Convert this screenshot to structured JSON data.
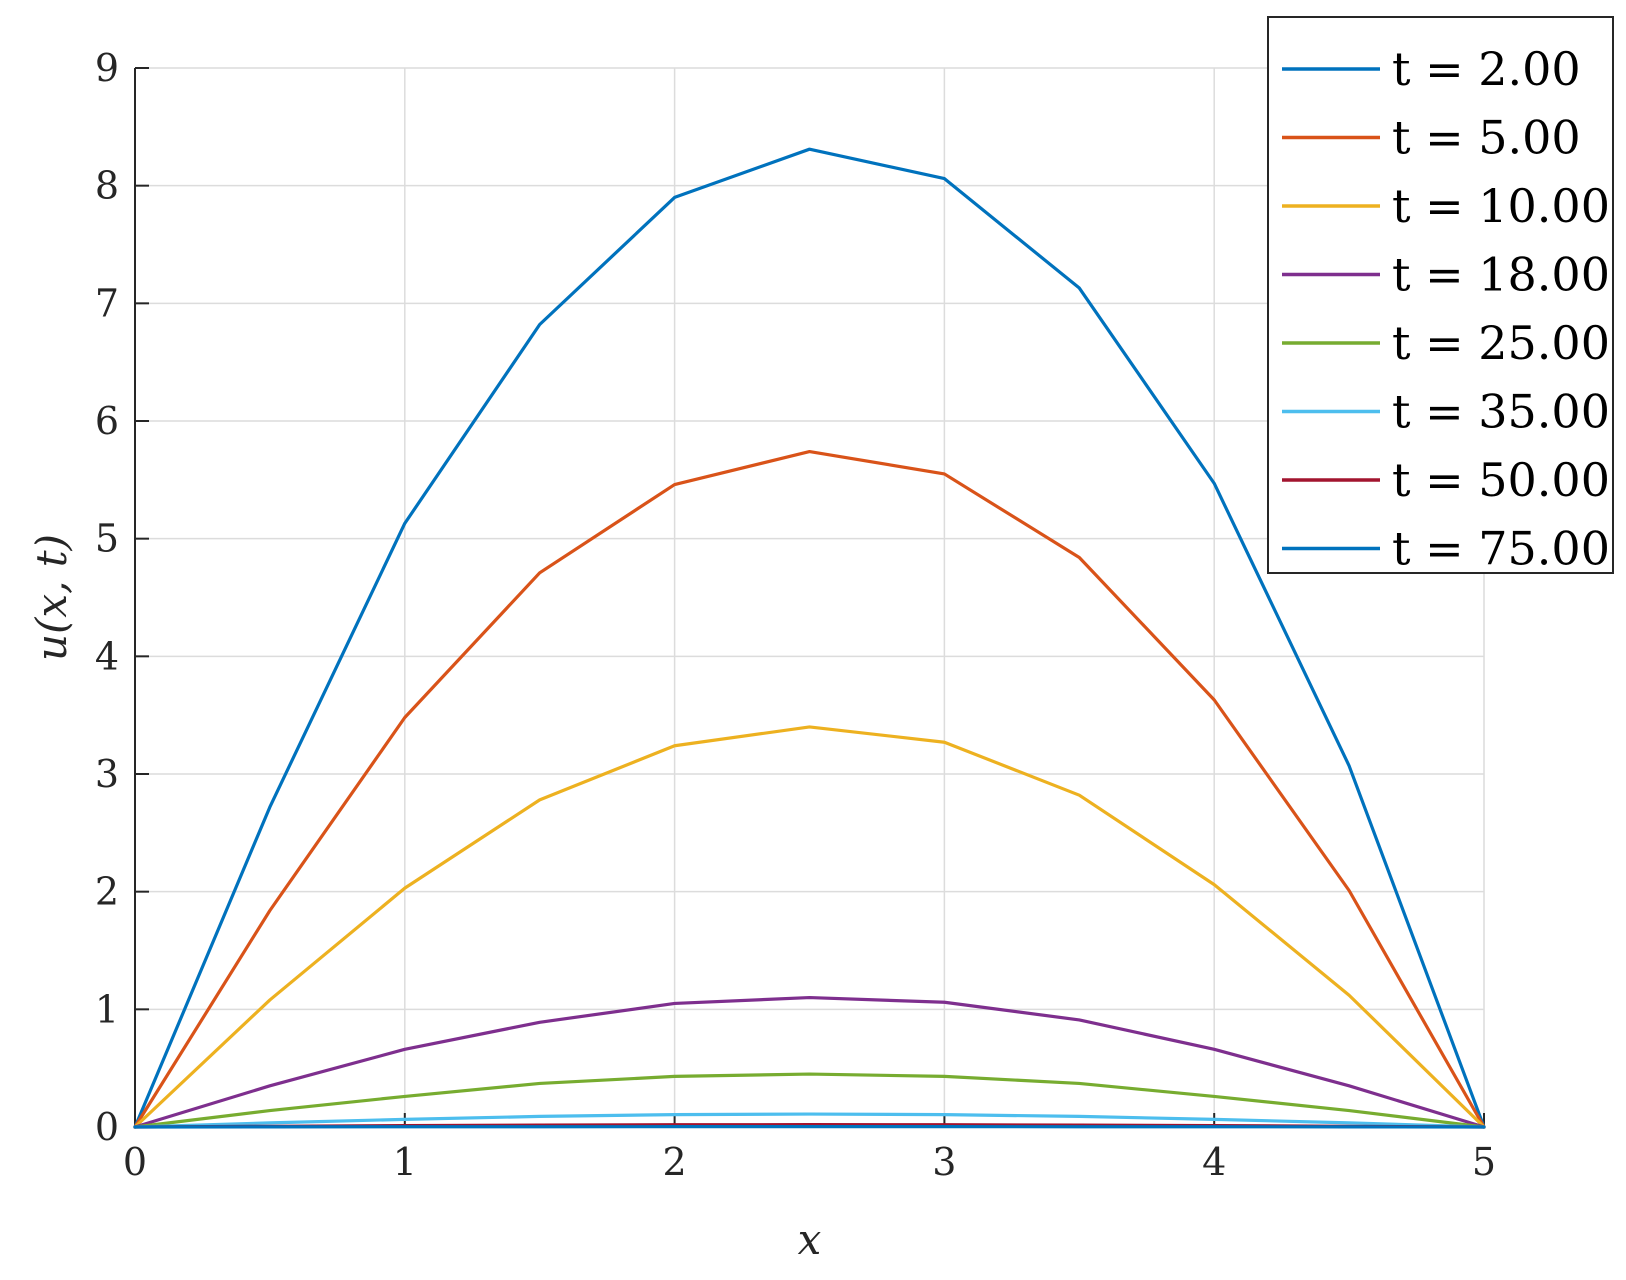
{
  "chart_data": {
    "type": "line",
    "xlabel": "x",
    "ylabel": "u(x, t)",
    "xlim": [
      0,
      5
    ],
    "ylim": [
      0,
      9
    ],
    "xticks": [
      "0",
      "1",
      "2",
      "3",
      "4",
      "5"
    ],
    "yticks": [
      "0",
      "1",
      "2",
      "3",
      "4",
      "5",
      "6",
      "7",
      "8",
      "9"
    ],
    "grid": true,
    "legend_position": "top-right",
    "x": [
      0,
      0.5,
      1,
      1.5,
      2,
      2.5,
      3,
      3.5,
      4,
      4.5,
      5
    ],
    "series": [
      {
        "name": "t = 2.00",
        "color": "#0072BD",
        "values": [
          0,
          2.72,
          5.13,
          6.82,
          7.9,
          8.31,
          8.06,
          7.13,
          5.47,
          3.07,
          0
        ]
      },
      {
        "name": "t = 5.00",
        "color": "#D95319",
        "values": [
          0,
          1.84,
          3.48,
          4.71,
          5.46,
          5.74,
          5.55,
          4.84,
          3.63,
          2.01,
          0
        ]
      },
      {
        "name": "t = 10.00",
        "color": "#EDB120",
        "values": [
          0,
          1.08,
          2.03,
          2.78,
          3.24,
          3.4,
          3.27,
          2.82,
          2.06,
          1.12,
          0
        ]
      },
      {
        "name": "t = 18.00",
        "color": "#7E2F8E",
        "values": [
          0,
          0.35,
          0.66,
          0.89,
          1.05,
          1.1,
          1.06,
          0.91,
          0.66,
          0.35,
          0
        ]
      },
      {
        "name": "t = 25.00",
        "color": "#77AC30",
        "values": [
          0,
          0.14,
          0.26,
          0.37,
          0.43,
          0.45,
          0.43,
          0.37,
          0.26,
          0.14,
          0
        ]
      },
      {
        "name": "t = 35.00",
        "color": "#4DBEEE",
        "values": [
          0,
          0.035,
          0.065,
          0.09,
          0.105,
          0.11,
          0.105,
          0.09,
          0.065,
          0.035,
          0
        ]
      },
      {
        "name": "t = 50.00",
        "color": "#A2142F",
        "values": [
          0,
          0.006,
          0.012,
          0.016,
          0.019,
          0.02,
          0.019,
          0.016,
          0.012,
          0.006,
          0
        ]
      },
      {
        "name": "t = 75.00",
        "color": "#0072BD",
        "values": [
          0,
          0.001,
          0.002,
          0.002,
          0.003,
          0.003,
          0.003,
          0.002,
          0.002,
          0.001,
          0
        ]
      }
    ]
  }
}
